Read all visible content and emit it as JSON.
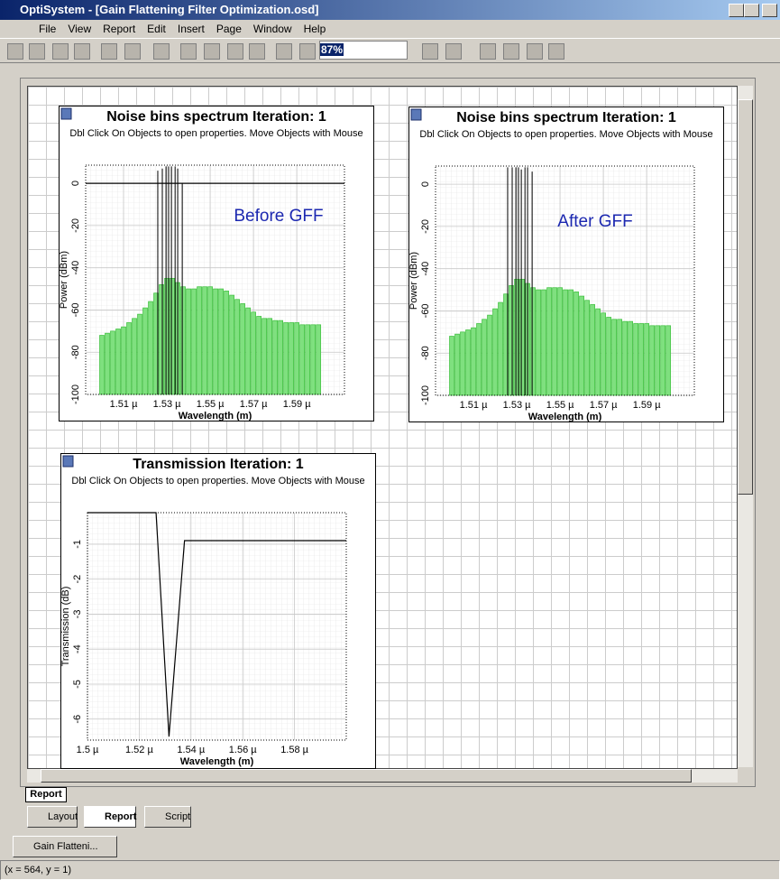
{
  "window": {
    "title": "OptiSystem - [Gain Flattening Filter Optimization.osd]",
    "menu": [
      "File",
      "View",
      "Report",
      "Edit",
      "Insert",
      "Page",
      "Window",
      "Help"
    ],
    "zoom": "87%"
  },
  "report_tab": "Report",
  "panels": [
    {
      "type": "bar",
      "title": "Noise bins spectrum Iteration: 1",
      "subtitle": "Dbl Click On Objects to open properties.  Move Objects with Mouse",
      "annotation": "Before GFF",
      "xlabel": "Wavelength (m)",
      "ylabel": "Power (dBm)",
      "xlim": [
        1.4925e-06,
        1.612e-06
      ],
      "ylim": [
        -100,
        8.6
      ],
      "xticks": [
        {
          "value": 1.51e-06,
          "label": "1.51 µ"
        },
        {
          "value": 1.53e-06,
          "label": "1.53 µ"
        },
        {
          "value": 1.55e-06,
          "label": "1.55 µ"
        },
        {
          "value": 1.57e-06,
          "label": "1.57 µ"
        },
        {
          "value": 1.59e-06,
          "label": "1.59 µ"
        }
      ],
      "yticks": [
        0,
        -20,
        -40,
        -60,
        -80,
        -100
      ],
      "zero_line": true,
      "color": "#7fe07f",
      "x": [
        1.5e-06,
        1.5025e-06,
        1.505e-06,
        1.5075e-06,
        1.51e-06,
        1.5125e-06,
        1.515e-06,
        1.5175e-06,
        1.52e-06,
        1.5225e-06,
        1.525e-06,
        1.5275e-06,
        1.53e-06,
        1.5325e-06,
        1.535e-06,
        1.5375e-06,
        1.54e-06,
        1.5425e-06,
        1.545e-06,
        1.5475e-06,
        1.55e-06,
        1.5525e-06,
        1.555e-06,
        1.5575e-06,
        1.56e-06,
        1.5625e-06,
        1.565e-06,
        1.5675e-06,
        1.57e-06,
        1.5725e-06,
        1.575e-06,
        1.5775e-06,
        1.58e-06,
        1.5825e-06,
        1.585e-06,
        1.5875e-06,
        1.59e-06,
        1.5925e-06,
        1.595e-06,
        1.5975e-06,
        1.6e-06
      ],
      "values": [
        -72,
        -71,
        -70,
        -69,
        -68,
        -66,
        -64,
        -62,
        -59,
        -56,
        -52,
        -48,
        -45,
        -45,
        -47,
        -49,
        -50,
        -50,
        -49,
        -49,
        -49,
        -50,
        -50,
        -51,
        -53,
        -55,
        -57,
        -59,
        -61,
        -63,
        -64,
        -64,
        -65,
        -65,
        -66,
        -66,
        -66,
        -67,
        -67,
        -67,
        -67
      ],
      "signals": {
        "x": [
          1.5258e-06,
          1.5279e-06,
          1.5296e-06,
          1.5308e-06,
          1.5321e-06,
          1.5338e-06,
          1.535e-06,
          1.5371e-06
        ],
        "values": [
          6,
          7,
          8,
          8,
          8,
          8,
          7,
          0
        ]
      }
    },
    {
      "type": "bar",
      "title": "Noise bins spectrum Iteration: 1",
      "subtitle": "Dbl Click On Objects to open properties.  Move Objects with Mouse",
      "annotation": "After GFF",
      "xlabel": "Wavelength (m)",
      "ylabel": "Power (dBm)",
      "xlim": [
        1.4925e-06,
        1.612e-06
      ],
      "ylim": [
        -100,
        8.6
      ],
      "xticks": [
        {
          "value": 1.51e-06,
          "label": "1.51 µ"
        },
        {
          "value": 1.53e-06,
          "label": "1.53 µ"
        },
        {
          "value": 1.55e-06,
          "label": "1.55 µ"
        },
        {
          "value": 1.57e-06,
          "label": "1.57 µ"
        },
        {
          "value": 1.59e-06,
          "label": "1.59 µ"
        }
      ],
      "yticks": [
        0,
        -20,
        -40,
        -60,
        -80,
        -100
      ],
      "zero_line": false,
      "color": "#7fe07f",
      "x": [
        1.5e-06,
        1.5025e-06,
        1.505e-06,
        1.5075e-06,
        1.51e-06,
        1.5125e-06,
        1.515e-06,
        1.5175e-06,
        1.52e-06,
        1.5225e-06,
        1.525e-06,
        1.5275e-06,
        1.53e-06,
        1.5325e-06,
        1.535e-06,
        1.5375e-06,
        1.54e-06,
        1.5425e-06,
        1.545e-06,
        1.5475e-06,
        1.55e-06,
        1.5525e-06,
        1.555e-06,
        1.5575e-06,
        1.56e-06,
        1.5625e-06,
        1.565e-06,
        1.5675e-06,
        1.57e-06,
        1.5725e-06,
        1.575e-06,
        1.5775e-06,
        1.58e-06,
        1.5825e-06,
        1.585e-06,
        1.5875e-06,
        1.59e-06,
        1.5925e-06,
        1.595e-06,
        1.5975e-06,
        1.6e-06
      ],
      "values": [
        -72,
        -71,
        -70,
        -69,
        -68,
        -66,
        -64,
        -62,
        -59,
        -56,
        -52,
        -48,
        -45,
        -45,
        -47,
        -49,
        -50,
        -50,
        -49,
        -49,
        -49,
        -50,
        -50,
        -51,
        -53,
        -55,
        -57,
        -59,
        -61,
        -63,
        -64,
        -64,
        -65,
        -65,
        -66,
        -66,
        -66,
        -67,
        -67,
        -67,
        -67
      ],
      "signals": {
        "x": [
          1.5258e-06,
          1.5279e-06,
          1.5296e-06,
          1.5308e-06,
          1.5321e-06,
          1.5338e-06,
          1.535e-06,
          1.5371e-06
        ],
        "values": [
          8,
          8,
          8,
          8,
          7,
          8,
          8,
          6
        ]
      }
    },
    {
      "type": "line",
      "title": "Transmission Iteration: 1",
      "subtitle": "Dbl Click On Objects to open properties.  Move Objects with Mouse",
      "xlabel": "Wavelength (m)",
      "ylabel": "Transmission (dB)",
      "xlim": [
        1.5e-06,
        1.6e-06
      ],
      "ylim": [
        -6.6,
        -0.1
      ],
      "xticks": [
        {
          "value": 1.5e-06,
          "label": "1.5 µ"
        },
        {
          "value": 1.52e-06,
          "label": "1.52 µ"
        },
        {
          "value": 1.54e-06,
          "label": "1.54 µ"
        },
        {
          "value": 1.56e-06,
          "label": "1.56 µ"
        },
        {
          "value": 1.58e-06,
          "label": "1.58 µ"
        }
      ],
      "yticks": [
        -1,
        -2,
        -3,
        -4,
        -5,
        -6
      ],
      "color": "#000000",
      "x": [
        1.5e-06,
        1.5265e-06,
        1.5315e-06,
        1.5375e-06,
        1.6e-06
      ],
      "values": [
        -0.1,
        -0.1,
        -6.5,
        -0.9,
        -0.9
      ]
    }
  ],
  "view_tabs": [
    "Layout",
    "Report",
    "Script"
  ],
  "document_tabs": [
    "Gain Flatteni..."
  ],
  "status": "(x = 564, y = 1)"
}
